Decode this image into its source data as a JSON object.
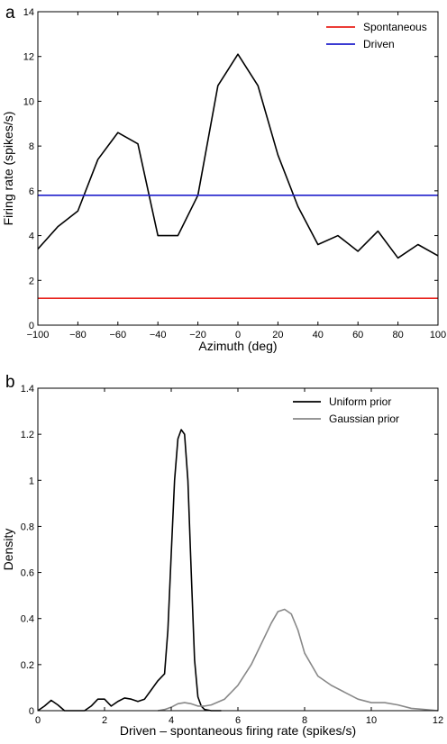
{
  "panels": [
    {
      "label": "a"
    },
    {
      "label": "b"
    }
  ],
  "chart_data": [
    {
      "type": "line",
      "xlabel": "Azimuth (deg)",
      "ylabel": "Firing rate (spikes/s)",
      "xlim": [
        -100,
        100
      ],
      "ylim": [
        0,
        14
      ],
      "xticks": [
        -100,
        -80,
        -60,
        -40,
        -20,
        0,
        20,
        40,
        60,
        80,
        100
      ],
      "xtick_labels": [
        "−100",
        "−80",
        "−60",
        "−40",
        "−20",
        "0",
        "20",
        "40",
        "60",
        "80",
        "100"
      ],
      "yticks": [
        0,
        2,
        4,
        6,
        8,
        10,
        12,
        14
      ],
      "ytick_labels": [
        "0",
        "2",
        "4",
        "6",
        "8",
        "10",
        "12",
        "14"
      ],
      "grid": false,
      "legend_position": "top-right",
      "series": [
        {
          "name": "",
          "color": "#000000",
          "x": [
            -100,
            -90,
            -80,
            -70,
            -60,
            -50,
            -40,
            -30,
            -20,
            -10,
            0,
            10,
            20,
            30,
            40,
            50,
            60,
            70,
            80,
            90,
            100
          ],
          "y": [
            3.4,
            4.4,
            5.1,
            7.4,
            8.6,
            8.1,
            4.0,
            4.0,
            5.8,
            10.7,
            12.1,
            10.7,
            7.6,
            5.3,
            3.6,
            4.0,
            3.3,
            4.2,
            3.0,
            3.6,
            3.1
          ]
        },
        {
          "name": "Spontaneous",
          "color": "#e8201a",
          "x": [
            -100,
            100
          ],
          "y": [
            1.2,
            1.2
          ]
        },
        {
          "name": "Driven",
          "color": "#1f1fcc",
          "x": [
            -100,
            100
          ],
          "y": [
            5.8,
            5.8
          ]
        }
      ]
    },
    {
      "type": "line",
      "xlabel": "Driven – spontaneous firing rate (spikes/s)",
      "ylabel": "Density",
      "xlim": [
        0,
        12
      ],
      "ylim": [
        0,
        1.4
      ],
      "xticks": [
        0,
        2,
        4,
        6,
        8,
        10,
        12
      ],
      "xtick_labels": [
        "0",
        "2",
        "4",
        "6",
        "8",
        "10",
        "12"
      ],
      "yticks": [
        0,
        0.2,
        0.4,
        0.6,
        0.8,
        1.0,
        1.2,
        1.4
      ],
      "ytick_labels": [
        "0",
        "0.2",
        "0.4",
        "0.6",
        "0.8",
        "1",
        "1.2",
        "1.4"
      ],
      "grid": false,
      "legend_position": "top-right",
      "series": [
        {
          "name": "Uniform prior",
          "color": "#000000",
          "x": [
            0.0,
            0.2,
            0.4,
            0.6,
            0.8,
            1.0,
            1.2,
            1.4,
            1.6,
            1.8,
            2.0,
            2.2,
            2.4,
            2.6,
            2.8,
            3.0,
            3.2,
            3.4,
            3.6,
            3.8,
            3.9,
            4.0,
            4.1,
            4.2,
            4.3,
            4.4,
            4.5,
            4.6,
            4.7,
            4.8,
            4.9,
            5.0,
            5.2,
            5.5
          ],
          "y": [
            0.0,
            0.02,
            0.045,
            0.025,
            0.0,
            0.0,
            0.0,
            0.0,
            0.02,
            0.05,
            0.05,
            0.02,
            0.04,
            0.055,
            0.05,
            0.04,
            0.05,
            0.09,
            0.13,
            0.16,
            0.35,
            0.68,
            1.0,
            1.18,
            1.22,
            1.2,
            1.0,
            0.6,
            0.22,
            0.06,
            0.02,
            0.005,
            0.0,
            0.0
          ]
        },
        {
          "name": "Gaussian prior",
          "color": "#888888",
          "x": [
            3.6,
            3.8,
            4.0,
            4.2,
            4.4,
            4.6,
            4.8,
            5.0,
            5.2,
            5.6,
            6.0,
            6.4,
            6.8,
            7.0,
            7.2,
            7.4,
            7.6,
            7.8,
            8.0,
            8.4,
            8.8,
            9.2,
            9.6,
            10.0,
            10.4,
            10.8,
            11.2,
            11.6,
            12.0
          ],
          "y": [
            0.0,
            0.005,
            0.015,
            0.03,
            0.035,
            0.03,
            0.02,
            0.02,
            0.025,
            0.05,
            0.11,
            0.2,
            0.32,
            0.38,
            0.43,
            0.44,
            0.42,
            0.35,
            0.25,
            0.15,
            0.11,
            0.08,
            0.05,
            0.035,
            0.035,
            0.025,
            0.01,
            0.005,
            0.0
          ]
        }
      ]
    }
  ]
}
